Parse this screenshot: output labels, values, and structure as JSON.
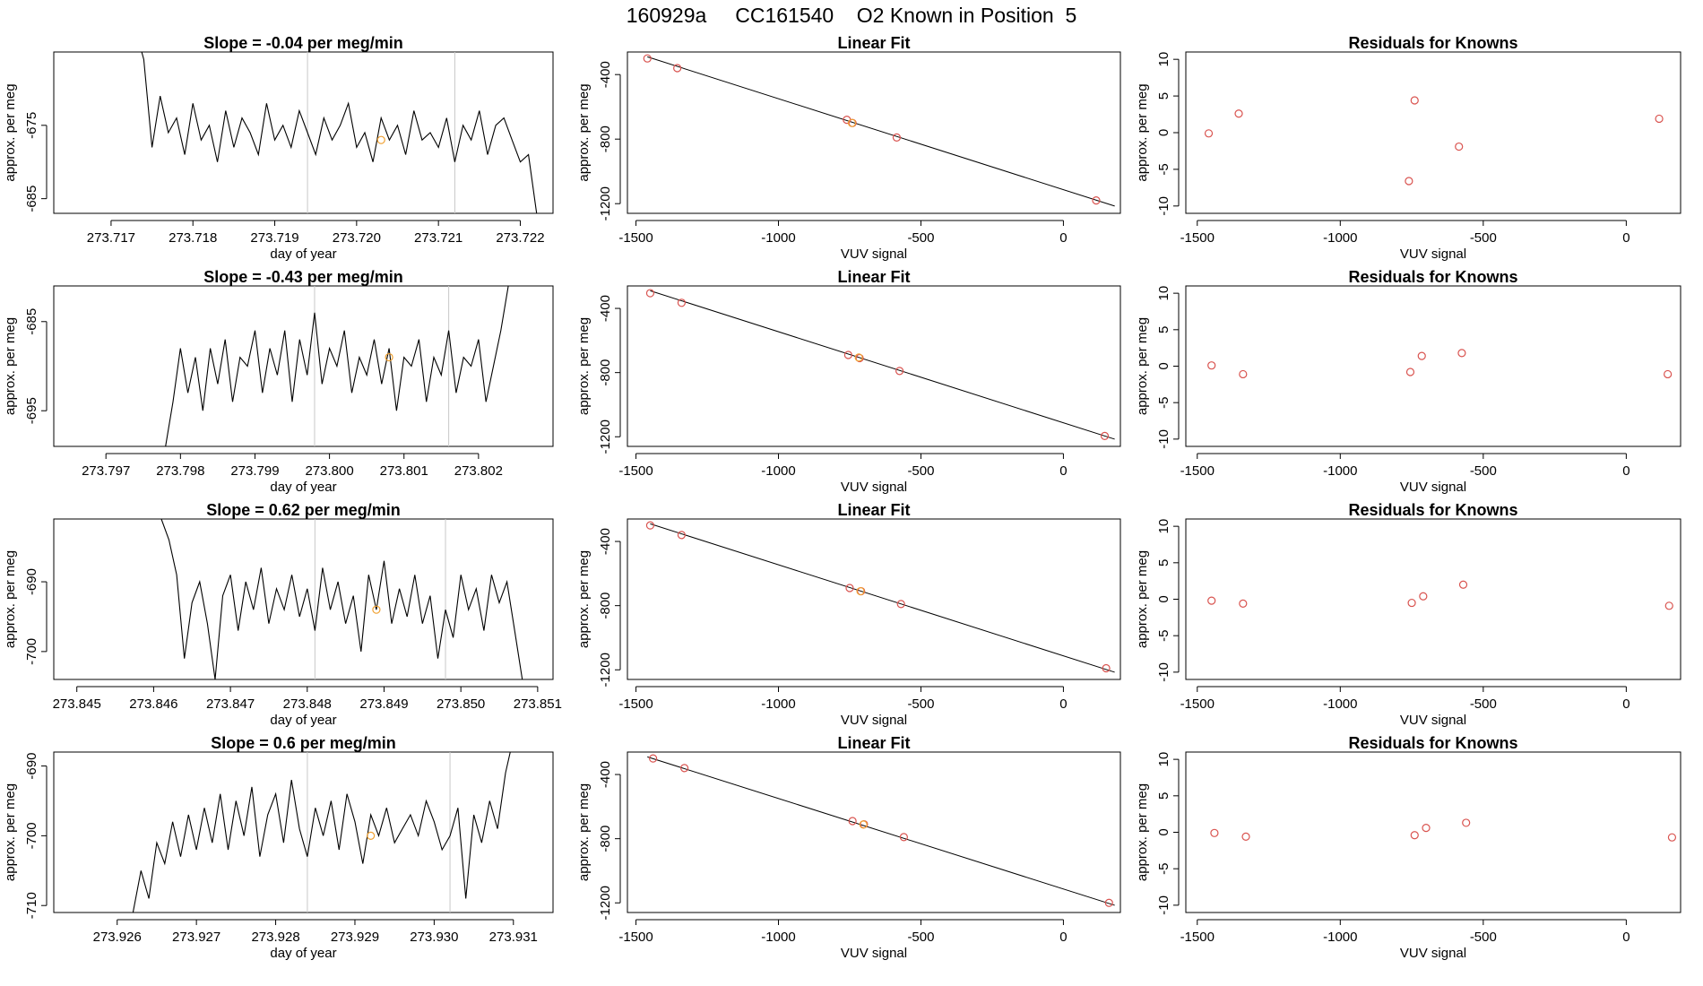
{
  "suptitle": "160929a     CC161540    O2 Known in Position  5",
  "colors": {
    "line": "#000000",
    "point_known": "#d9534f",
    "point_unknown": "#f0a030",
    "grid": "#c8c8c8"
  },
  "chart_data": [
    {
      "type": "line",
      "title": "Slope =  -0.04  per meg/min",
      "xlabel": "day of year",
      "ylabel": "approx. per meg",
      "xlim": [
        273.7163,
        273.7224
      ],
      "ylim": [
        -687,
        -665
      ],
      "xticks": [
        "273.717",
        "273.718",
        "273.719",
        "273.720",
        "273.721",
        "273.722"
      ],
      "yticks": [
        "-675",
        "-685"
      ],
      "vlines": [
        273.7194,
        273.7212
      ],
      "highlight": {
        "x": 273.7203,
        "y": -677
      },
      "series": [
        {
          "name": "trace",
          "x": [
            273.7173,
            273.7174,
            273.7175,
            273.7176,
            273.7177,
            273.7178,
            273.7179,
            273.718,
            273.7181,
            273.7182,
            273.7183,
            273.7184,
            273.7185,
            273.7186,
            273.7187,
            273.7188,
            273.7189,
            273.719,
            273.7191,
            273.7192,
            273.7193,
            273.7194,
            273.7195,
            273.7196,
            273.7197,
            273.7198,
            273.7199,
            273.72,
            273.7201,
            273.7202,
            273.7203,
            273.7204,
            273.7205,
            273.7206,
            273.7207,
            273.7208,
            273.7209,
            273.721,
            273.7211,
            273.7212,
            273.7213,
            273.7214,
            273.7215,
            273.7216,
            273.7217,
            273.7218,
            273.7219,
            273.722,
            273.7221,
            273.7222
          ],
          "values": [
            -662,
            -666,
            -678,
            -671,
            -676,
            -674,
            -679,
            -672,
            -677,
            -675,
            -680,
            -673,
            -678,
            -674,
            -676,
            -679,
            -672,
            -677,
            -675,
            -678,
            -673,
            -676,
            -679,
            -674,
            -677,
            -675,
            -672,
            -678,
            -676,
            -680,
            -674,
            -677,
            -675,
            -679,
            -673,
            -677,
            -676,
            -678,
            -674,
            -680,
            -675,
            -677,
            -673,
            -679,
            -675,
            -674,
            -677,
            -680,
            -679,
            -687
          ]
        }
      ]
    },
    {
      "type": "scatter",
      "title": "Linear Fit",
      "xlabel": "VUV signal",
      "ylabel": "approx. per meg",
      "xlim": [
        -1530,
        200
      ],
      "ylim": [
        -1260,
        -260
      ],
      "xticks": [
        -1500,
        -1000,
        -500,
        0
      ],
      "yticks": [
        -400,
        -800,
        -1200
      ],
      "fit": {
        "x": [
          -1460,
          180
        ],
        "y": [
          -290,
          -1215
        ]
      },
      "knowns": {
        "x": [
          -1460,
          -1355,
          -760,
          -740,
          -585,
          115
        ],
        "y": [
          -300,
          -360,
          -680,
          -700,
          -790,
          -1180
        ]
      },
      "unknowns": {
        "x": [
          -742
        ],
        "y": [
          -700
        ]
      }
    },
    {
      "type": "scatter",
      "title": "Residuals for Knowns",
      "xlabel": "VUV signal",
      "ylabel": "approx. per meg",
      "xlim": [
        -1540,
        190
      ],
      "ylim": [
        -11,
        11
      ],
      "xticks": [
        -1500,
        -1000,
        -500,
        0
      ],
      "yticks": [
        10,
        5,
        0,
        -5,
        -10
      ],
      "points": {
        "x": [
          -1460,
          -1355,
          -760,
          -740,
          -585,
          115
        ],
        "y": [
          -0.1,
          2.6,
          -6.6,
          4.4,
          -1.9,
          1.9
        ]
      }
    },
    {
      "type": "line",
      "title": "Slope =  -0.43  per meg/min",
      "xlabel": "day of year",
      "ylabel": "approx. per meg",
      "xlim": [
        273.7963,
        273.803
      ],
      "ylim": [
        -699,
        -681
      ],
      "xticks": [
        "273.797",
        "273.798",
        "273.799",
        "273.800",
        "273.801",
        "273.802"
      ],
      "yticks": [
        "-685",
        "-695"
      ],
      "vlines": [
        273.7998,
        273.8016
      ],
      "highlight": {
        "x": 273.8008,
        "y": -689
      },
      "series": [
        {
          "name": "trace",
          "x": [
            273.7978,
            273.7979,
            273.798,
            273.7981,
            273.7982,
            273.7983,
            273.7984,
            273.7985,
            273.7986,
            273.7987,
            273.7988,
            273.7989,
            273.799,
            273.7991,
            273.7992,
            273.7993,
            273.7994,
            273.7995,
            273.7996,
            273.7997,
            273.7998,
            273.7999,
            273.8,
            273.8001,
            273.8002,
            273.8003,
            273.8004,
            273.8005,
            273.8006,
            273.8007,
            273.8008,
            273.8009,
            273.801,
            273.8011,
            273.8012,
            273.8013,
            273.8014,
            273.8015,
            273.8016,
            273.8017,
            273.8018,
            273.8019,
            273.802,
            273.8021,
            273.8022,
            273.8023,
            273.8024
          ],
          "values": [
            -699,
            -694,
            -688,
            -693,
            -689,
            -695,
            -688,
            -692,
            -687,
            -694,
            -689,
            -690,
            -686,
            -693,
            -688,
            -691,
            -686,
            -694,
            -687,
            -691,
            -684,
            -692,
            -688,
            -690,
            -686,
            -693,
            -689,
            -691,
            -687,
            -692,
            -688,
            -695,
            -689,
            -690,
            -687,
            -694,
            -689,
            -691,
            -686,
            -693,
            -689,
            -690,
            -687,
            -694,
            -690,
            -686,
            -681
          ]
        }
      ]
    },
    {
      "type": "scatter",
      "title": "Linear Fit",
      "xlabel": "VUV signal",
      "ylabel": "approx. per meg",
      "xlim": [
        -1530,
        200
      ],
      "ylim": [
        -1260,
        -260
      ],
      "xticks": [
        -1500,
        -1000,
        -500,
        0
      ],
      "yticks": [
        -400,
        -800,
        -1200
      ],
      "fit": {
        "x": [
          -1450,
          180
        ],
        "y": [
          -290,
          -1215
        ]
      },
      "knowns": {
        "x": [
          -1450,
          -1340,
          -755,
          -715,
          -575,
          145
        ],
        "y": [
          -305,
          -365,
          -690,
          -710,
          -790,
          -1195
        ]
      },
      "unknowns": {
        "x": [
          -718
        ],
        "y": [
          -706
        ]
      }
    },
    {
      "type": "scatter",
      "title": "Residuals for Knowns",
      "xlabel": "VUV signal",
      "ylabel": "approx. per meg",
      "xlim": [
        -1540,
        190
      ],
      "ylim": [
        -11,
        11
      ],
      "xticks": [
        -1500,
        -1000,
        -500,
        0
      ],
      "yticks": [
        10,
        5,
        0,
        -5,
        -10
      ],
      "points": {
        "x": [
          -1450,
          -1340,
          -755,
          -715,
          -575,
          145
        ],
        "y": [
          0.1,
          -1.1,
          -0.8,
          1.4,
          1.8,
          -1.1
        ]
      }
    },
    {
      "type": "line",
      "title": "Slope =  0.62  per meg/min",
      "xlabel": "day of year",
      "ylabel": "approx. per meg",
      "xlim": [
        273.8447,
        273.8512
      ],
      "ylim": [
        -704,
        -681
      ],
      "xticks": [
        "273.845",
        "273.846",
        "273.847",
        "273.848",
        "273.849",
        "273.850",
        "273.851"
      ],
      "yticks": [
        "-690",
        "-700"
      ],
      "vlines": [
        273.8481,
        273.8498
      ],
      "highlight": {
        "x": 273.8489,
        "y": -694
      },
      "series": [
        {
          "name": "trace",
          "x": [
            273.8461,
            273.8462,
            273.8463,
            273.8464,
            273.8465,
            273.8466,
            273.8467,
            273.8468,
            273.8469,
            273.847,
            273.8471,
            273.8472,
            273.8473,
            273.8474,
            273.8475,
            273.8476,
            273.8477,
            273.8478,
            273.8479,
            273.848,
            273.8481,
            273.8482,
            273.8483,
            273.8484,
            273.8485,
            273.8486,
            273.8487,
            273.8488,
            273.8489,
            273.849,
            273.8491,
            273.8492,
            273.8493,
            273.8494,
            273.8495,
            273.8496,
            273.8497,
            273.8498,
            273.8499,
            273.85,
            273.8501,
            273.8502,
            273.8503,
            273.8504,
            273.8505,
            273.8506,
            273.8507,
            273.8508
          ],
          "values": [
            -681,
            -684,
            -689,
            -701,
            -693,
            -690,
            -696,
            -704,
            -692,
            -689,
            -697,
            -690,
            -694,
            -688,
            -696,
            -691,
            -694,
            -689,
            -695,
            -691,
            -697,
            -688,
            -694,
            -690,
            -696,
            -692,
            -700,
            -689,
            -694,
            -687,
            -696,
            -691,
            -695,
            -689,
            -696,
            -692,
            -701,
            -694,
            -698,
            -689,
            -694,
            -691,
            -697,
            -689,
            -693,
            -690,
            -697,
            -704
          ]
        }
      ]
    },
    {
      "type": "scatter",
      "title": "Linear Fit",
      "xlabel": "VUV signal",
      "ylabel": "approx. per meg",
      "xlim": [
        -1530,
        200
      ],
      "ylim": [
        -1260,
        -260
      ],
      "xticks": [
        -1500,
        -1000,
        -500,
        0
      ],
      "yticks": [
        -400,
        -800,
        -1200
      ],
      "fit": {
        "x": [
          -1450,
          180
        ],
        "y": [
          -290,
          -1215
        ]
      },
      "knowns": {
        "x": [
          -1450,
          -1340,
          -750,
          -710,
          -570,
          150
        ],
        "y": [
          -300,
          -360,
          -690,
          -710,
          -790,
          -1190
        ]
      },
      "unknowns": {
        "x": [
          -712
        ],
        "y": [
          -710
        ]
      }
    },
    {
      "type": "scatter",
      "title": "Residuals for Knowns",
      "xlabel": "VUV signal",
      "ylabel": "approx. per meg",
      "xlim": [
        -1540,
        190
      ],
      "ylim": [
        -11,
        11
      ],
      "xticks": [
        -1500,
        -1000,
        -500,
        0
      ],
      "yticks": [
        10,
        5,
        0,
        -5,
        -10
      ],
      "points": {
        "x": [
          -1450,
          -1340,
          -750,
          -710,
          -570,
          150
        ],
        "y": [
          -0.2,
          -0.6,
          -0.5,
          0.4,
          2.0,
          -0.9
        ]
      }
    },
    {
      "type": "line",
      "title": "Slope =  0.6  per meg/min",
      "xlabel": "day of year",
      "ylabel": "approx. per meg",
      "xlim": [
        273.9252,
        273.9315
      ],
      "ylim": [
        -711,
        -688
      ],
      "xticks": [
        "273.926",
        "273.927",
        "273.928",
        "273.929",
        "273.930",
        "273.931"
      ],
      "yticks": [
        "-690",
        "-700",
        "-710"
      ],
      "vlines": [
        273.9284,
        273.9302
      ],
      "highlight": {
        "x": 273.9292,
        "y": -700
      },
      "series": [
        {
          "name": "trace",
          "x": [
            273.9262,
            273.9263,
            273.9264,
            273.9265,
            273.9266,
            273.9267,
            273.9268,
            273.9269,
            273.927,
            273.9271,
            273.9272,
            273.9273,
            273.9274,
            273.9275,
            273.9276,
            273.9277,
            273.9278,
            273.9279,
            273.928,
            273.9281,
            273.9282,
            273.9283,
            273.9284,
            273.9285,
            273.9286,
            273.9287,
            273.9288,
            273.9289,
            273.929,
            273.9291,
            273.9292,
            273.9293,
            273.9294,
            273.9295,
            273.9296,
            273.9297,
            273.9298,
            273.9299,
            273.93,
            273.9301,
            273.9302,
            273.9303,
            273.9304,
            273.9305,
            273.9306,
            273.9307,
            273.9308,
            273.9309,
            273.931
          ],
          "values": [
            -711,
            -705,
            -709,
            -701,
            -704,
            -698,
            -703,
            -697,
            -702,
            -696,
            -701,
            -694,
            -702,
            -695,
            -700,
            -693,
            -703,
            -697,
            -694,
            -701,
            -692,
            -699,
            -703,
            -696,
            -700,
            -695,
            -702,
            -694,
            -698,
            -704,
            -697,
            -700,
            -696,
            -701,
            -699,
            -697,
            -700,
            -695,
            -698,
            -702,
            -700,
            -696,
            -709,
            -697,
            -701,
            -695,
            -699,
            -691,
            -686
          ]
        }
      ]
    },
    {
      "type": "scatter",
      "title": "Linear Fit",
      "xlabel": "VUV signal",
      "ylabel": "approx. per meg",
      "xlim": [
        -1530,
        200
      ],
      "ylim": [
        -1260,
        -260
      ],
      "xticks": [
        -1500,
        -1000,
        -500,
        0
      ],
      "yticks": [
        -400,
        -800,
        -1200
      ],
      "fit": {
        "x": [
          -1460,
          180
        ],
        "y": [
          -290,
          -1215
        ]
      },
      "knowns": {
        "x": [
          -1440,
          -1330,
          -740,
          -700,
          -560,
          160
        ],
        "y": [
          -300,
          -360,
          -690,
          -710,
          -790,
          -1200
        ]
      },
      "unknowns": {
        "x": [
          -702
        ],
        "y": [
          -712
        ]
      }
    },
    {
      "type": "scatter",
      "title": "Residuals for Knowns",
      "xlabel": "VUV signal",
      "ylabel": "approx. per meg",
      "xlim": [
        -1540,
        190
      ],
      "ylim": [
        -11,
        11
      ],
      "xticks": [
        -1500,
        -1000,
        -500,
        0
      ],
      "yticks": [
        10,
        5,
        0,
        -5,
        -10
      ],
      "points": {
        "x": [
          -1440,
          -1330,
          -740,
          -700,
          -560,
          160
        ],
        "y": [
          -0.1,
          -0.6,
          -0.4,
          0.6,
          1.3,
          -0.7
        ]
      }
    }
  ]
}
